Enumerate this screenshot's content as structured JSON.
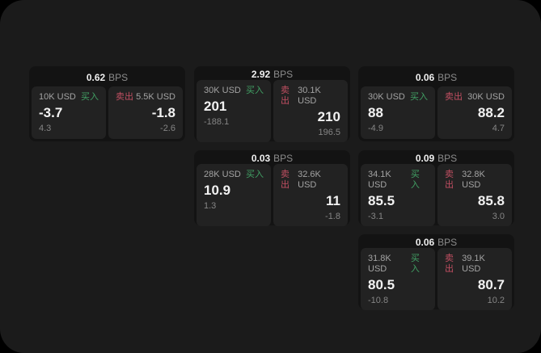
{
  "labels": {
    "bps_unit": "BPS",
    "buy": "买入",
    "sell": "卖出"
  },
  "colors": {
    "buy_green": "#41a064",
    "sell_red": "#c14f62",
    "screen_bg": "#1b1b1b",
    "card_bg": "#131313",
    "tile_bg": "#222222"
  },
  "cards": [
    {
      "bps": "0.62",
      "buy": {
        "amount": "10K USD",
        "price": "-3.7",
        "delta": "4.3"
      },
      "sell": {
        "amount": "5.5K USD",
        "price": "-1.8",
        "delta": "-2.6"
      }
    },
    {
      "bps": "2.92",
      "buy": {
        "amount": "30K USD",
        "price": "201",
        "delta": "-188.1"
      },
      "sell": {
        "amount": "30.1K USD",
        "price": "210",
        "delta": "196.5"
      }
    },
    {
      "bps": "0.06",
      "buy": {
        "amount": "30K USD",
        "price": "88",
        "delta": "-4.9"
      },
      "sell": {
        "amount": "30K USD",
        "price": "88.2",
        "delta": "4.7"
      }
    },
    {
      "bps": "0.03",
      "buy": {
        "amount": "28K USD",
        "price": "10.9",
        "delta": "1.3"
      },
      "sell": {
        "amount": "32.6K USD",
        "price": "11",
        "delta": "-1.8"
      }
    },
    {
      "bps": "0.09",
      "buy": {
        "amount": "34.1K USD",
        "price": "85.5",
        "delta": "-3.1"
      },
      "sell": {
        "amount": "32.8K USD",
        "price": "85.8",
        "delta": "3.0"
      }
    },
    {
      "bps": "0.06",
      "buy": {
        "amount": "31.8K USD",
        "price": "80.5",
        "delta": "-10.8"
      },
      "sell": {
        "amount": "39.1K USD",
        "price": "80.7",
        "delta": "10.2"
      }
    }
  ]
}
